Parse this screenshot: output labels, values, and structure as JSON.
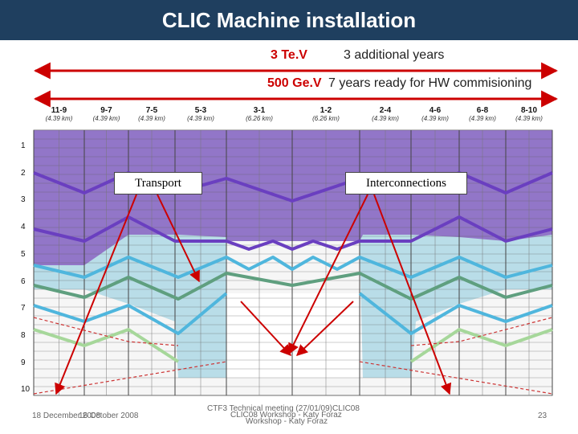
{
  "header": {
    "title": "CLIC Machine installation"
  },
  "scenarios": {
    "tev3": {
      "label": "3 Te.V",
      "note": "3 additional years"
    },
    "gev500": {
      "label": "500 Ge.V",
      "note": "7 years ready for HW commisioning"
    }
  },
  "sectors": [
    {
      "name": "11-9",
      "length": "(4.39 km)"
    },
    {
      "name": "9-7",
      "length": "(4.39 km)"
    },
    {
      "name": "7-5",
      "length": "(4.39 km)"
    },
    {
      "name": "5-3",
      "length": "(4.39 km)"
    },
    {
      "name": "3-1",
      "length": "(6.26 km)"
    },
    {
      "name": "1-2",
      "length": "(6.26 km)"
    },
    {
      "name": "2-4",
      "length": "(4.39 km)"
    },
    {
      "name": "4-6",
      "length": "(4.39 km)"
    },
    {
      "name": "6-8",
      "length": "(4.39 km)"
    },
    {
      "name": "8-10",
      "length": "(4.39 km)"
    }
  ],
  "years": [
    "1",
    "2",
    "3",
    "4",
    "5",
    "6",
    "7",
    "8",
    "9",
    "10"
  ],
  "callouts": {
    "transport": "Transport",
    "interconnections": "Interconnections"
  },
  "colors": {
    "title_bar": "#1f3f5f",
    "accent_red": "#cc0000",
    "purple": "#8e6cc4",
    "light_blue": "#b9dde8",
    "violet_line": "#6a3fc0",
    "blue_line": "#4fb6dd",
    "teal_line": "#5f9f7f",
    "green_line": "#a6d79a"
  },
  "footer": {
    "date": "16 October 2008",
    "date_overlap": "18 December 2008",
    "center": "CTF3 Technical meeting (27/01/09)CLIC08",
    "center_overlap": "CLIC08 Workshop - Katy Foraz",
    "center_line2": "Workshop - Katy Foraz",
    "page": "23"
  }
}
